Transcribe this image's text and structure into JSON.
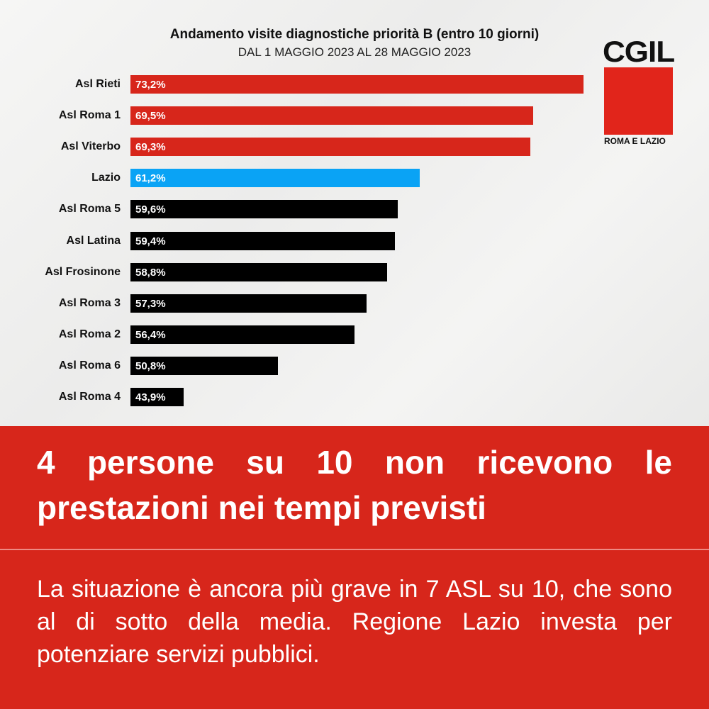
{
  "chart_data": {
    "type": "bar",
    "orientation": "horizontal",
    "title": "Andamento visite diagnostiche priorità B (entro 10 giorni)",
    "subtitle": "DAL 1 MAGGIO 2023 AL 28 MAGGIO 2023",
    "categories": [
      "Asl Rieti",
      "Asl Roma 1",
      "Asl Viterbo",
      "Lazio",
      "Asl Roma 5",
      "Asl Latina",
      "Asl Frosinone",
      "Asl Roma 3",
      "Asl Roma 2",
      "Asl Roma 6",
      "Asl Roma 4"
    ],
    "values": [
      73.2,
      69.5,
      69.3,
      61.2,
      59.6,
      59.4,
      58.8,
      57.3,
      56.4,
      50.8,
      43.9
    ],
    "labels": [
      "73,2%",
      "69,5%",
      "69,3%",
      "61,2%",
      "59,6%",
      "59,4%",
      "58,8%",
      "57,3%",
      "56,4%",
      "50,8%",
      "43,9%"
    ],
    "colors": [
      "#d7261b",
      "#d7261b",
      "#d7261b",
      "#0aa3f5",
      "#000000",
      "#000000",
      "#000000",
      "#000000",
      "#000000",
      "#000000",
      "#000000"
    ],
    "xlim": [
      40,
      74
    ],
    "grid": false,
    "legend": "none"
  },
  "logo": {
    "text": "CGIL",
    "subtext": "ROMA E LAZIO",
    "color": "#e1251b"
  },
  "band": {
    "color": "#d7261b",
    "headline": "4 persone su 10 non ricevono le prestazioni nei tempi previsti",
    "body": "La situazione è ancora più grave in 7 ASL su 10, che sono al di sotto della media. Regione Lazio investa per potenziare servizi pubblici."
  }
}
